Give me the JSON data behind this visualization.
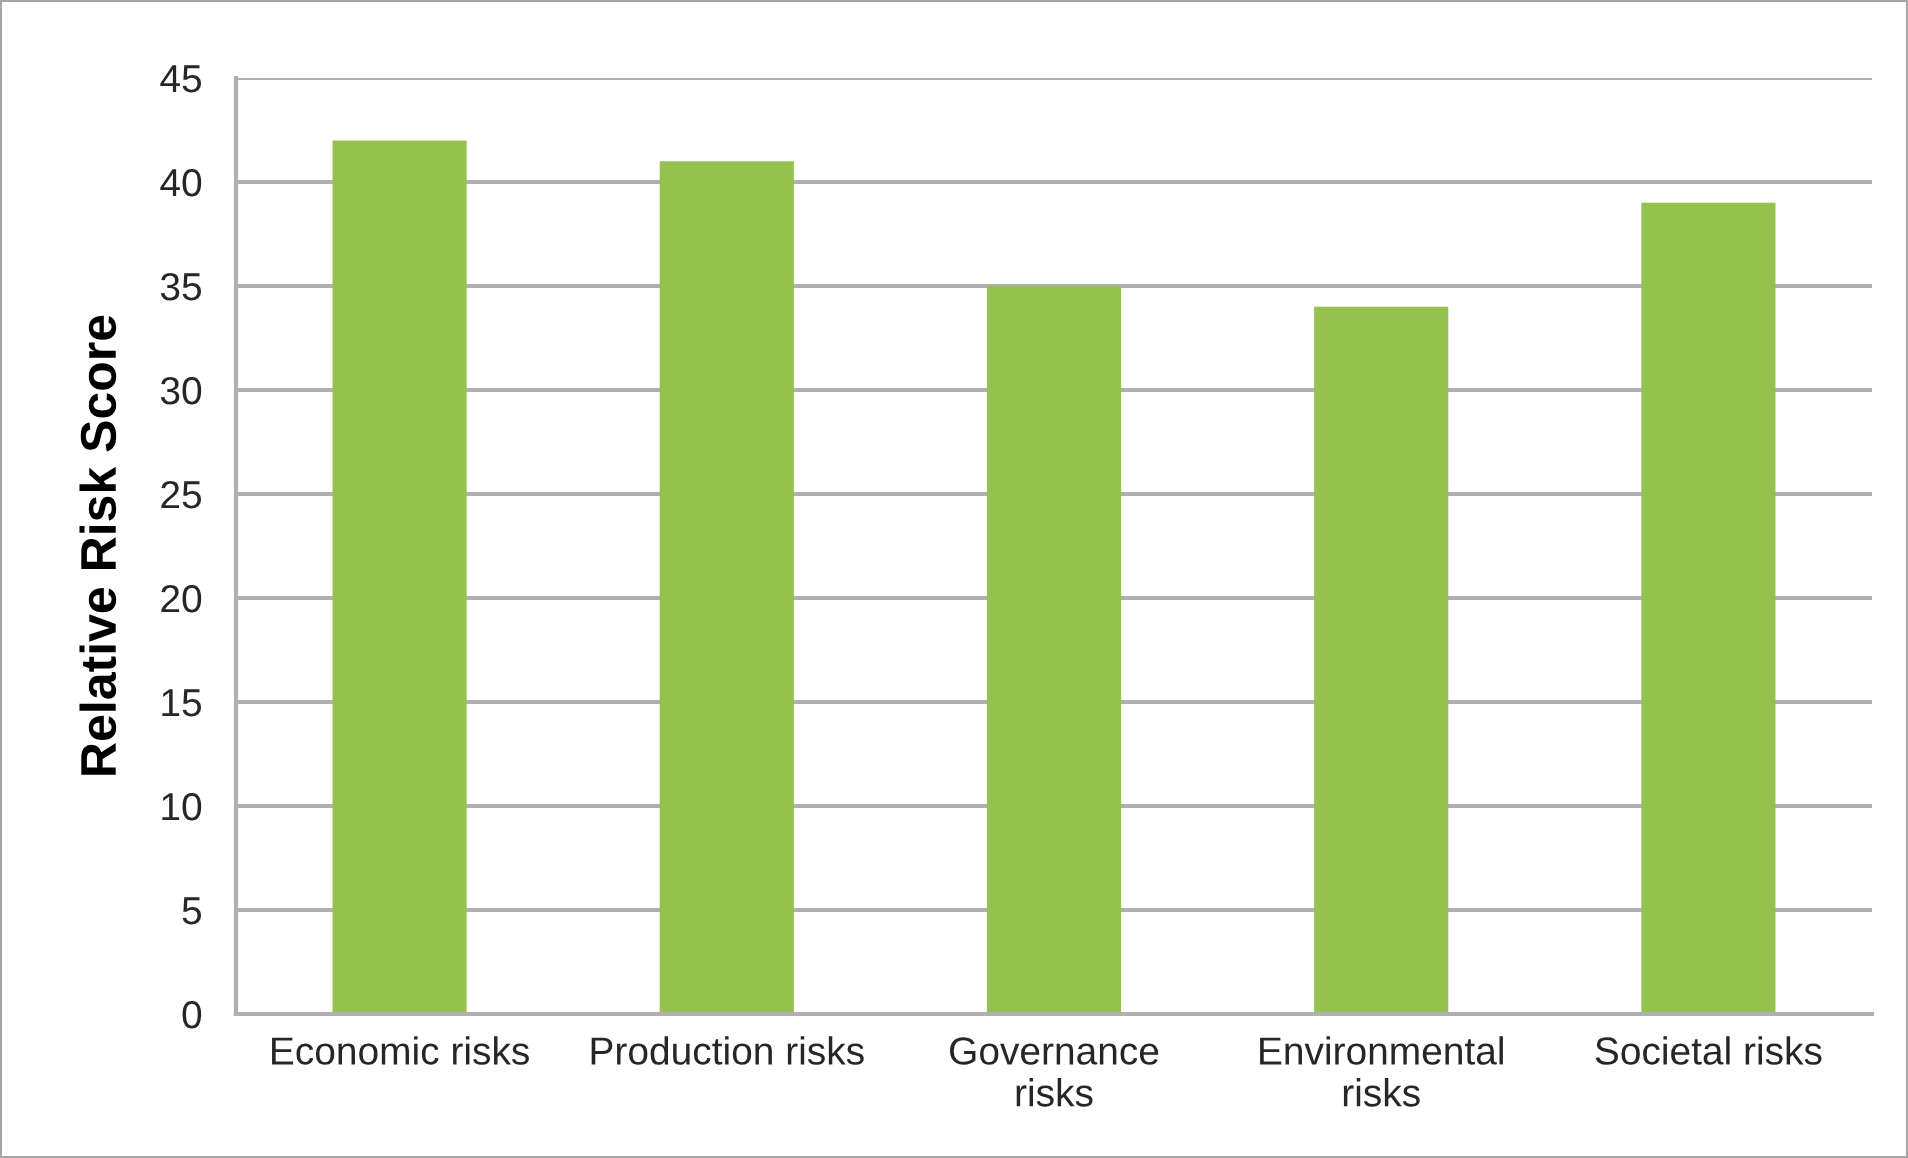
{
  "chart_data": {
    "type": "bar",
    "ylabel": "Relative Risk Score",
    "categories": [
      "Economic risks",
      "Production risks",
      "Governance\nrisks",
      "Environmental\nrisks",
      "Societal risks"
    ],
    "values": [
      42,
      41,
      35,
      34,
      39
    ],
    "color": "#95c14e",
    "ylim": [
      0,
      45
    ],
    "yticks": [
      0,
      5,
      10,
      15,
      20,
      25,
      30,
      35,
      40,
      45
    ],
    "grid": "y",
    "legend": false
  }
}
